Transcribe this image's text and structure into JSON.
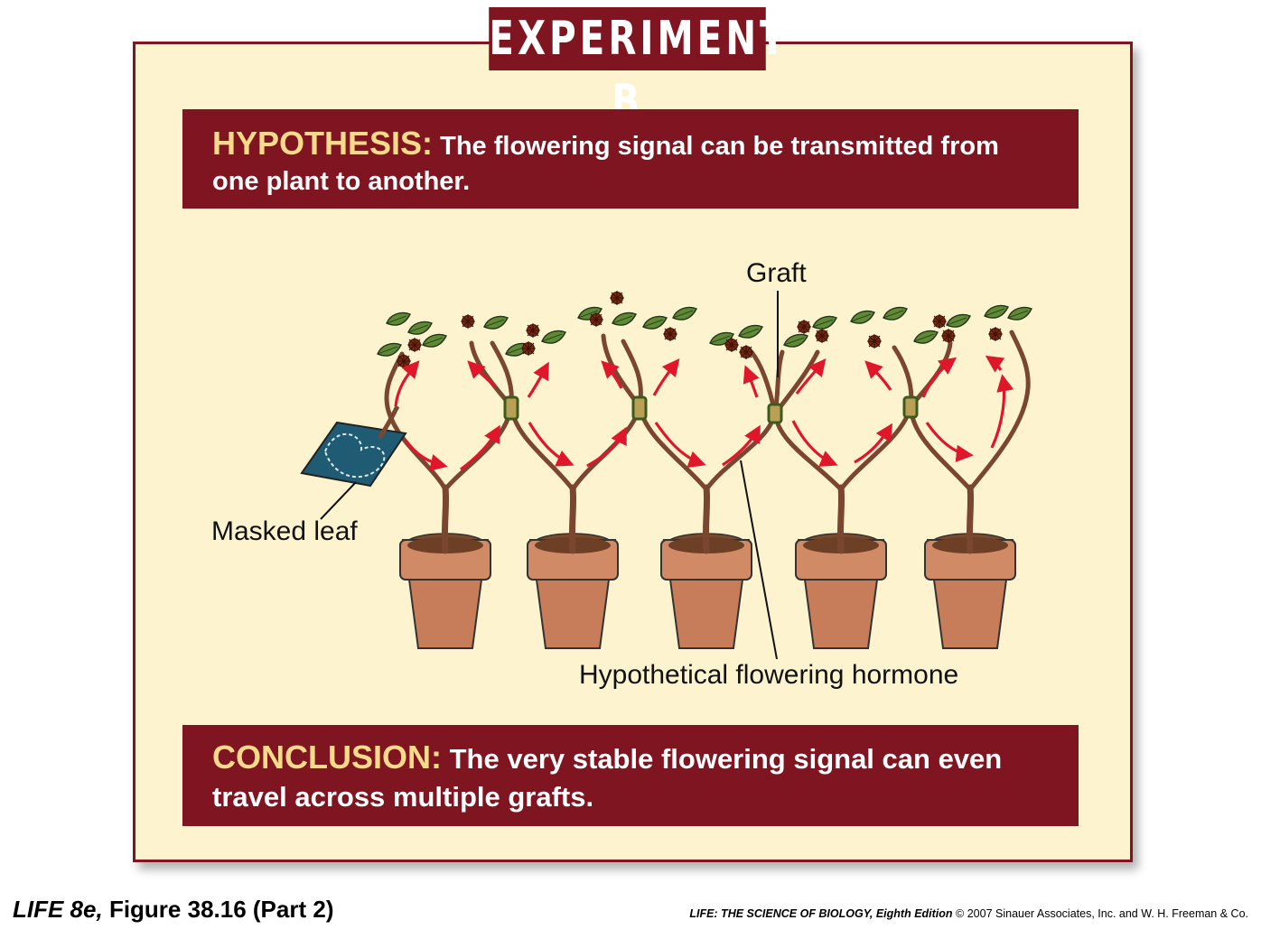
{
  "title": "EXPERIMENT B",
  "hypothesis": {
    "keyword": "HYPOTHESIS:",
    "text": "The flowering signal can be transmitted from one plant to another."
  },
  "labels": {
    "graft": "Graft",
    "masked_leaf": "Masked leaf",
    "hormone": "Hypothetical flowering hormone"
  },
  "conclusion": {
    "keyword": "CONCLUSION:",
    "text": "The very stable flowering signal can even travel across multiple grafts."
  },
  "footer": {
    "figure_book": "LIFE 8e,",
    "figure_ref": "Figure 38.16 (Part 2)",
    "source_title": "LIFE: THE SCIENCE OF BIOLOGY, Eighth Edition",
    "copyright": "© 2007 Sinauer Associates, Inc. and W. H. Freeman & Co."
  },
  "colors": {
    "banner": "#7e1520",
    "panel_background": "#fdf3cf",
    "keyword": "#f9d98a",
    "arrow": "#e0162b",
    "pot": "#c87d5a",
    "stem": "#7a4630",
    "leaf": "#5e8a35",
    "flower": "#7a2a10",
    "mask": "#1f5c73"
  }
}
